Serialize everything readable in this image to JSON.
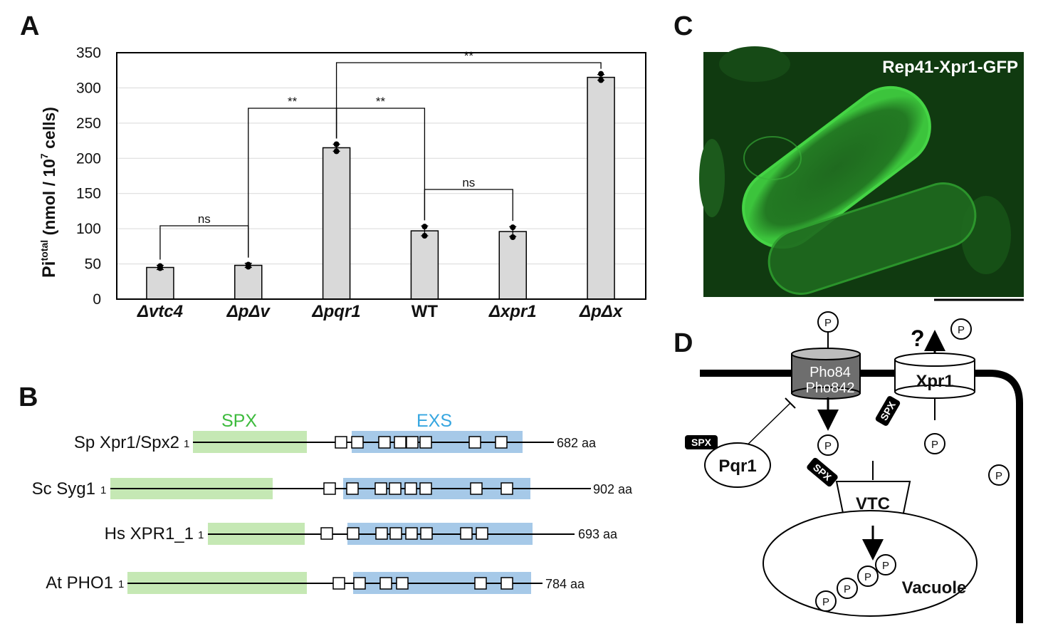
{
  "panels": {
    "a": "A",
    "b": "B",
    "c": "C",
    "d": "D"
  },
  "chart_data": {
    "type": "bar",
    "categories": [
      "Δvtc4",
      "ΔpΔv",
      "Δpqr1",
      "WT",
      "Δxpr1",
      "ΔpΔx"
    ],
    "values": [
      45,
      48,
      215,
      97,
      96,
      315
    ],
    "errors": [
      3,
      3,
      5,
      7,
      7,
      4
    ],
    "points": [
      [
        44,
        47
      ],
      [
        46,
        49
      ],
      [
        210,
        220
      ],
      [
        90,
        103
      ],
      [
        88,
        102
      ],
      [
        311,
        320
      ]
    ],
    "ylabel_main": "Pi",
    "ylabel_sup": "total",
    "ylabel_rest": " (nmol / 10",
    "ylabel_exp": "7",
    "ylabel_end": " cells)",
    "ylim": [
      0,
      350
    ],
    "yticks": [
      "0",
      "50",
      "100",
      "150",
      "200",
      "250",
      "300",
      "350"
    ],
    "grid": true,
    "significance": [
      {
        "from": 0,
        "to": 1,
        "label": "ns"
      },
      {
        "from": 1,
        "to": 2,
        "label": "**"
      },
      {
        "from": 2,
        "to": 3,
        "label": "**"
      },
      {
        "from": 3,
        "to": 4,
        "label": "ns"
      },
      {
        "from": 2,
        "to": 5,
        "label": "**"
      }
    ]
  },
  "domains": {
    "spx_label": "SPX",
    "exs_label": "EXS",
    "spx_color": "#c5e8b4",
    "exs_color": "#a6c9e8",
    "proteins": [
      {
        "name": "Sp Xpr1/Spx2",
        "start": "1",
        "length": "682 aa"
      },
      {
        "name": "Sc Syg1",
        "start": "1",
        "length": "902 aa"
      },
      {
        "name": "Hs XPR1_1",
        "start": "1",
        "length": "693 aa"
      },
      {
        "name": "At PHO1",
        "start": "1",
        "length": "784 aa"
      }
    ]
  },
  "micrograph": {
    "label": "Rep41-Xpr1-GFP",
    "bg_color": "#103a10",
    "cell_color": "#2fa32f"
  },
  "model": {
    "pho84": "Pho84",
    "pho842": "Pho842",
    "xpr1": "Xpr1",
    "pqr1": "Pqr1",
    "vtc": "VTC",
    "vacuole": "Vacuole",
    "spx_tag": "SPX",
    "phosphate": "P",
    "question": "?"
  }
}
